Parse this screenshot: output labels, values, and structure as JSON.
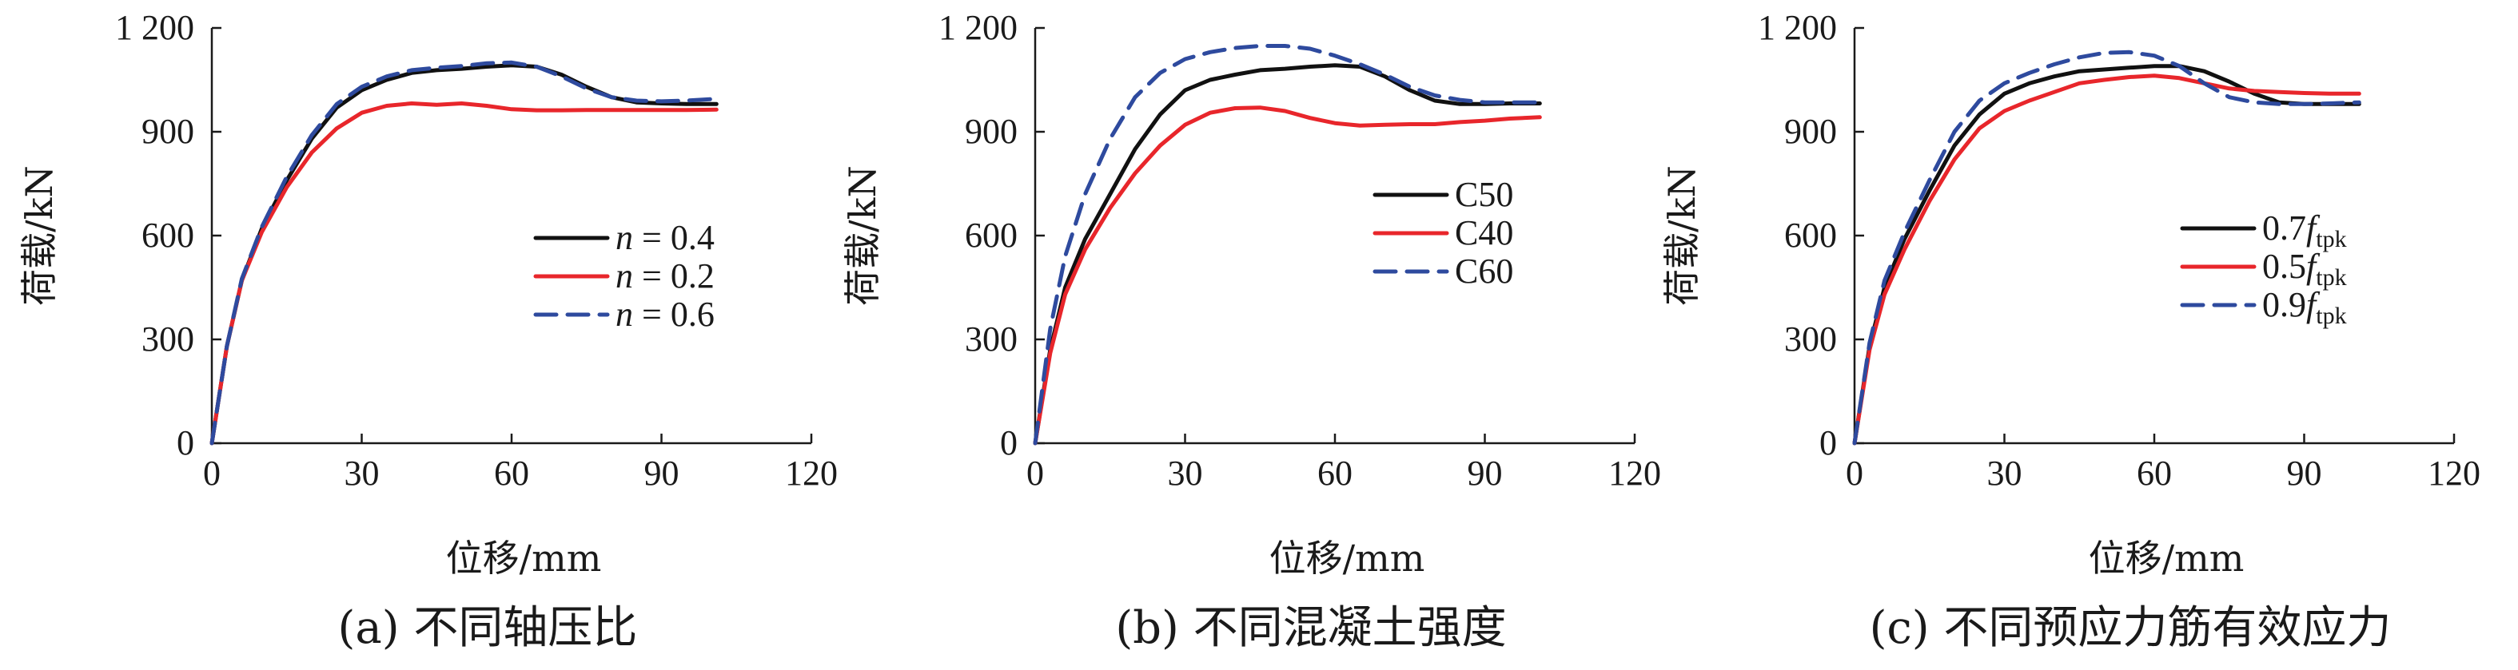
{
  "chart_data": [
    {
      "type": "line",
      "xlabel": "位移/mm",
      "ylabel": "荷载/kN",
      "caption": "(a) 不同轴压比",
      "xlim": [
        0,
        120
      ],
      "ylim": [
        0,
        1200
      ],
      "xticks": [
        "0",
        "30",
        "60",
        "90",
        "120"
      ],
      "yticks": [
        "0",
        "300",
        "600",
        "900",
        "1 200"
      ],
      "legend_position": "right",
      "series": [
        {
          "name": "n = 0.4",
          "legend_prefix": "n",
          "legend_suffix": " = 0.4",
          "color": "#111111",
          "dash": "solid",
          "x": [
            0,
            3,
            6,
            10,
            15,
            20,
            25,
            30,
            35,
            40,
            45,
            50,
            55,
            60,
            65,
            70,
            75,
            80,
            85,
            90,
            95,
            101
          ],
          "y": [
            0,
            280,
            470,
            620,
            760,
            880,
            970,
            1020,
            1050,
            1070,
            1078,
            1082,
            1088,
            1092,
            1088,
            1065,
            1030,
            1000,
            985,
            982,
            980,
            980
          ]
        },
        {
          "name": "n = 0.2",
          "legend_prefix": "n",
          "legend_suffix": " = 0.2",
          "color": "#e8262b",
          "dash": "solid",
          "x": [
            0,
            3,
            6,
            10,
            15,
            20,
            25,
            30,
            35,
            40,
            45,
            50,
            55,
            60,
            65,
            70,
            75,
            80,
            85,
            90,
            95,
            101
          ],
          "y": [
            0,
            280,
            470,
            610,
            740,
            840,
            910,
            955,
            975,
            982,
            978,
            982,
            975,
            965,
            962,
            962,
            963,
            963,
            963,
            963,
            963,
            964
          ]
        },
        {
          "name": "n = 0.6",
          "legend_prefix": "n",
          "legend_suffix": " = 0.6",
          "color": "#2e4a9e",
          "dash": "dashed",
          "x": [
            0,
            3,
            6,
            10,
            15,
            20,
            25,
            30,
            35,
            40,
            45,
            50,
            55,
            60,
            65,
            70,
            75,
            80,
            85,
            90,
            95,
            101
          ],
          "y": [
            0,
            280,
            475,
            625,
            770,
            890,
            980,
            1030,
            1060,
            1078,
            1085,
            1090,
            1098,
            1100,
            1088,
            1060,
            1025,
            1000,
            990,
            988,
            990,
            995
          ]
        }
      ]
    },
    {
      "type": "line",
      "xlabel": "位移/mm",
      "ylabel": "荷载/kN",
      "caption": "(b) 不同混凝土强度",
      "xlim": [
        0,
        120
      ],
      "ylim": [
        0,
        1200
      ],
      "xticks": [
        "0",
        "30",
        "60",
        "90",
        "120"
      ],
      "yticks": [
        "0",
        "300",
        "600",
        "900",
        "1 200"
      ],
      "legend_position": "right",
      "series": [
        {
          "name": "C50",
          "legend_prefix": "C50",
          "legend_suffix": "",
          "color": "#111111",
          "dash": "solid",
          "x": [
            0,
            3,
            6,
            10,
            15,
            20,
            25,
            30,
            35,
            40,
            45,
            50,
            55,
            60,
            65,
            70,
            75,
            80,
            85,
            90,
            95,
            101
          ],
          "y": [
            0,
            270,
            450,
            590,
            720,
            850,
            950,
            1020,
            1050,
            1065,
            1078,
            1082,
            1088,
            1092,
            1088,
            1060,
            1020,
            990,
            980,
            980,
            982,
            982
          ]
        },
        {
          "name": "C40",
          "legend_prefix": "C40",
          "legend_suffix": "",
          "color": "#e8262b",
          "dash": "solid",
          "x": [
            0,
            3,
            6,
            10,
            15,
            20,
            25,
            30,
            35,
            40,
            45,
            50,
            55,
            60,
            65,
            70,
            75,
            80,
            85,
            90,
            95,
            101
          ],
          "y": [
            0,
            260,
            430,
            560,
            680,
            780,
            860,
            920,
            955,
            968,
            970,
            960,
            940,
            925,
            918,
            920,
            922,
            922,
            928,
            932,
            938,
            942
          ]
        },
        {
          "name": "C60",
          "legend_prefix": "C60",
          "legend_suffix": "",
          "color": "#2e4a9e",
          "dash": "dashed",
          "x": [
            0,
            3,
            6,
            10,
            15,
            20,
            25,
            30,
            35,
            40,
            45,
            50,
            55,
            60,
            65,
            70,
            75,
            80,
            85,
            90,
            95,
            101
          ],
          "y": [
            0,
            330,
            540,
            720,
            880,
            1000,
            1070,
            1110,
            1130,
            1142,
            1148,
            1148,
            1140,
            1120,
            1095,
            1065,
            1030,
            1005,
            992,
            985,
            985,
            985
          ]
        }
      ]
    },
    {
      "type": "line",
      "xlabel": "位移/mm",
      "ylabel": "荷载/kN",
      "caption": "(c) 不同预应力筋有效应力",
      "xlim": [
        0,
        120
      ],
      "ylim": [
        0,
        1200
      ],
      "xticks": [
        "0",
        "30",
        "60",
        "90",
        "120"
      ],
      "yticks": [
        "0",
        "300",
        "600",
        "900",
        "1 200"
      ],
      "legend_position": "right",
      "series": [
        {
          "name": "0.7ftpk",
          "legend_prefix": "0.7",
          "legend_italic": "f",
          "legend_sub": "tpk",
          "color": "#111111",
          "dash": "solid",
          "x": [
            0,
            3,
            6,
            10,
            15,
            20,
            25,
            30,
            35,
            40,
            45,
            50,
            55,
            60,
            65,
            70,
            75,
            80,
            85,
            90,
            95,
            101
          ],
          "y": [
            0,
            280,
            450,
            590,
            730,
            860,
            950,
            1010,
            1040,
            1060,
            1075,
            1080,
            1085,
            1090,
            1090,
            1075,
            1045,
            1010,
            985,
            980,
            980,
            980
          ]
        },
        {
          "name": "0.5ftpk",
          "legend_prefix": "0.5",
          "legend_italic": "f",
          "legend_sub": "tpk",
          "color": "#e8262b",
          "dash": "solid",
          "x": [
            0,
            3,
            6,
            10,
            15,
            20,
            25,
            30,
            35,
            40,
            45,
            50,
            55,
            60,
            65,
            70,
            75,
            80,
            85,
            90,
            95,
            101
          ],
          "y": [
            0,
            270,
            430,
            560,
            700,
            820,
            910,
            960,
            990,
            1015,
            1040,
            1050,
            1058,
            1062,
            1055,
            1040,
            1025,
            1018,
            1015,
            1012,
            1010,
            1010
          ]
        },
        {
          "name": "0.9ftpk",
          "legend_prefix": "0.9",
          "legend_italic": "f",
          "legend_sub": "tpk",
          "color": "#2e4a9e",
          "dash": "dashed",
          "x": [
            0,
            3,
            6,
            10,
            15,
            20,
            25,
            30,
            35,
            40,
            45,
            50,
            55,
            60,
            65,
            70,
            75,
            80,
            85,
            90,
            95,
            101
          ],
          "y": [
            0,
            290,
            470,
            610,
            760,
            900,
            990,
            1040,
            1070,
            1095,
            1115,
            1128,
            1130,
            1120,
            1090,
            1040,
            1000,
            985,
            980,
            980,
            982,
            985
          ]
        }
      ]
    }
  ]
}
